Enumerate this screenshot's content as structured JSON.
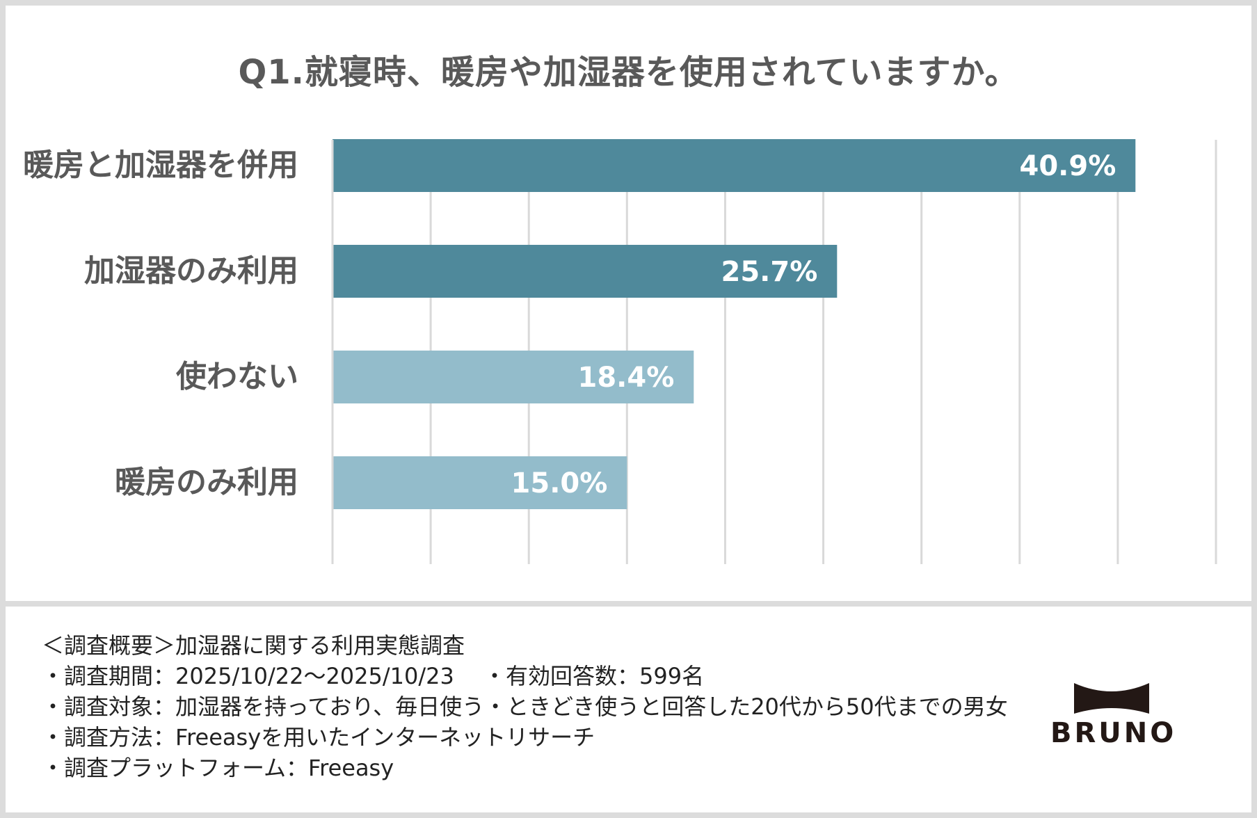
{
  "chart_data": {
    "type": "bar",
    "orientation": "horizontal",
    "title": "Q1.就寝時、暖房や加湿器を使用されていますか。",
    "categories": [
      "暖房と加湿器を併用",
      "加湿器のみ利用",
      "使わない",
      "暖房のみ利用"
    ],
    "values": [
      40.9,
      25.7,
      18.4,
      15.0
    ],
    "data_labels": [
      "40.9%",
      "25.7%",
      "18.4%",
      "15.0%"
    ],
    "xlim": [
      0,
      45
    ],
    "grid_step": 5,
    "grid": true,
    "colors": [
      "#4f899b",
      "#4f899b",
      "#93bccb",
      "#93bccb"
    ],
    "data_label_color": "#ffffff",
    "grid_color": "#d9d9d9",
    "xlabel": "",
    "ylabel": ""
  },
  "notes": {
    "lines": [
      "＜調査概要＞加湿器に関する利用実態調査",
      "・調査期間：2025/10/22～2025/10/23　 ・有効回答数：599名",
      "・調査対象：加湿器を持っており、毎日使う・ときどき使うと回答した20代から50代までの男女",
      "・調査方法：Freeasyを用いたインターネットリサーチ",
      "・調査プラットフォーム：Freeasy"
    ]
  },
  "brand": {
    "name": "BRUNO",
    "logo_icon": "bruno-bowtie-logo-icon"
  }
}
